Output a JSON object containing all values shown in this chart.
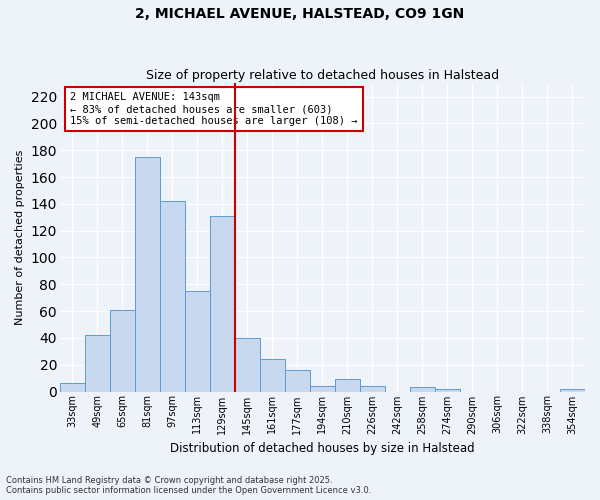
{
  "title": "2, MICHAEL AVENUE, HALSTEAD, CO9 1GN",
  "subtitle": "Size of property relative to detached houses in Halstead",
  "xlabel": "Distribution of detached houses by size in Halstead",
  "ylabel": "Number of detached properties",
  "bar_labels": [
    "33sqm",
    "49sqm",
    "65sqm",
    "81sqm",
    "97sqm",
    "113sqm",
    "129sqm",
    "145sqm",
    "161sqm",
    "177sqm",
    "194sqm",
    "210sqm",
    "226sqm",
    "242sqm",
    "258sqm",
    "274sqm",
    "290sqm",
    "306sqm",
    "322sqm",
    "338sqm",
    "354sqm"
  ],
  "bar_values": [
    6,
    42,
    61,
    175,
    142,
    75,
    131,
    40,
    24,
    16,
    4,
    9,
    4,
    0,
    3,
    2,
    0,
    0,
    0,
    0,
    2
  ],
  "bar_color": "#c8d8ee",
  "bar_edge_color": "#5b9bd5",
  "vline_color": "#cc0000",
  "annotation_title": "2 MICHAEL AVENUE: 143sqm",
  "annotation_line1": "← 83% of detached houses are smaller (603)",
  "annotation_line2": "15% of semi-detached houses are larger (108) →",
  "annotation_box_color": "#ffffff",
  "annotation_box_edge": "#cc0000",
  "ylim": [
    0,
    230
  ],
  "yticks": [
    0,
    20,
    40,
    60,
    80,
    100,
    120,
    140,
    160,
    180,
    200,
    220
  ],
  "footnote1": "Contains HM Land Registry data © Crown copyright and database right 2025.",
  "footnote2": "Contains public sector information licensed under the Open Government Licence v3.0.",
  "bg_color": "#eef2f9",
  "grid_color": "#ffffff"
}
